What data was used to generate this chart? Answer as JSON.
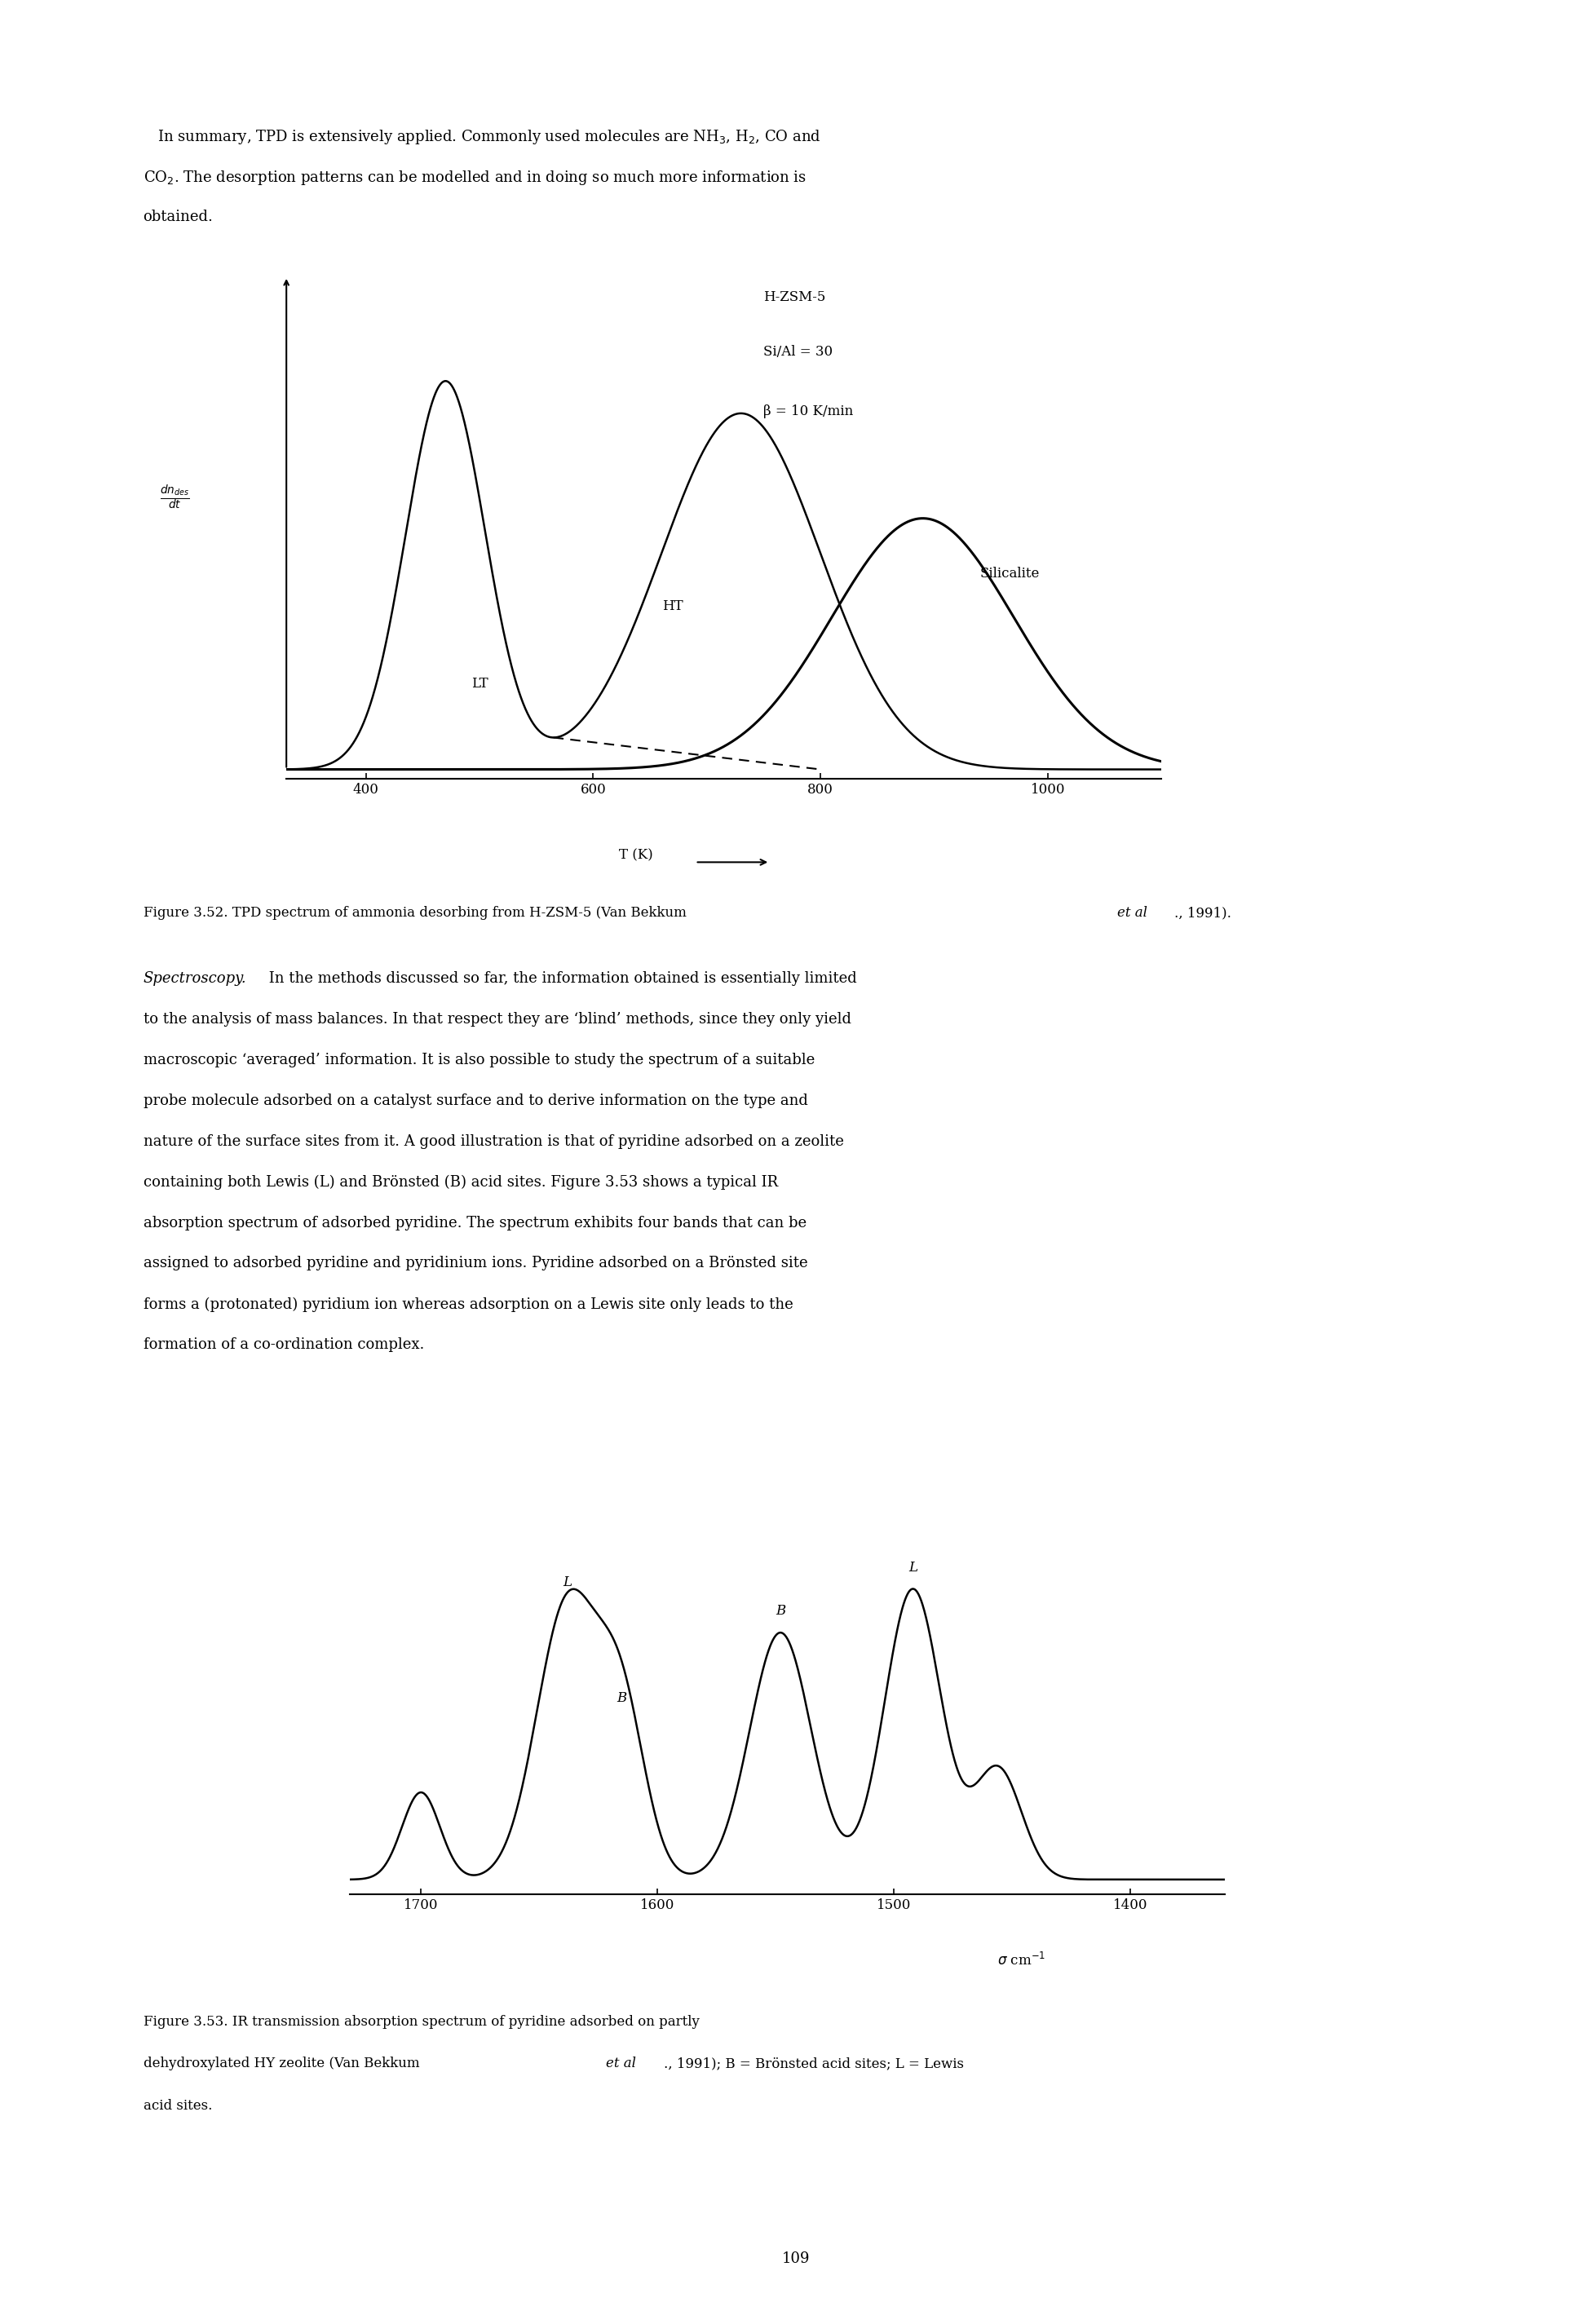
{
  "page_width": 19.51,
  "page_height": 28.5,
  "bg_color": "#ffffff",
  "text_color": "#000000",
  "fig1_annotation1": "H-ZSM-5",
  "fig1_annotation2": "Si/Al = 30",
  "fig1_annotation3": "β = 10 K/min",
  "fig1_label_LT": "LT",
  "fig1_label_HT": "HT",
  "fig1_label_Silicalite": "Silicalite",
  "fig1_xlabel": "T (K)",
  "fig1_xticks": [
    400,
    600,
    800,
    1000
  ],
  "fig2_xticks": [
    1700,
    1600,
    1500,
    1400
  ],
  "page_number": "109"
}
